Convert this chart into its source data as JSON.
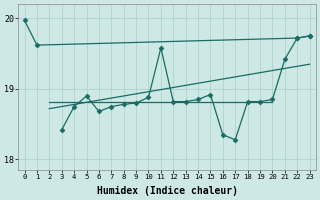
{
  "xlabel": "Humidex (Indice chaleur)",
  "bg_color": "#cde8e5",
  "grid_color": "#a8cfcc",
  "line_color": "#1a6b65",
  "xlim": [
    -0.5,
    23.5
  ],
  "ylim": [
    17.85,
    20.2
  ],
  "yticks": [
    18,
    19,
    20
  ],
  "xticks": [
    0,
    1,
    2,
    3,
    4,
    5,
    6,
    7,
    8,
    9,
    10,
    11,
    12,
    13,
    14,
    15,
    16,
    17,
    18,
    19,
    20,
    21,
    22,
    23
  ],
  "series_with_markers": [
    {
      "x": [
        0,
        1,
        22,
        23
      ],
      "y": [
        19.97,
        19.62,
        19.72,
        19.75
      ]
    },
    {
      "x": [
        3,
        4,
        5,
        6,
        7,
        8,
        9,
        10,
        11,
        12,
        13,
        14,
        15,
        16,
        17,
        18,
        19,
        20,
        21,
        22,
        23
      ],
      "y": [
        18.42,
        18.75,
        18.9,
        18.68,
        18.75,
        18.78,
        18.8,
        18.88,
        19.58,
        18.82,
        18.82,
        18.85,
        18.92,
        18.35,
        18.28,
        18.82,
        18.82,
        18.85,
        19.42,
        19.72,
        19.75
      ]
    }
  ],
  "series_no_markers": [
    {
      "x": [
        2,
        3,
        4,
        5,
        6,
        7,
        8,
        9,
        10,
        11,
        12,
        13,
        14,
        15,
        16,
        17,
        18,
        19,
        20
      ],
      "y": [
        18.82,
        18.82,
        18.82,
        18.82,
        18.82,
        18.82,
        18.82,
        18.82,
        18.82,
        18.82,
        18.82,
        18.82,
        18.82,
        18.82,
        18.82,
        18.82,
        18.82,
        18.82,
        18.82
      ]
    },
    {
      "x": [
        2,
        3,
        4,
        5,
        6,
        7,
        8,
        9,
        10,
        11,
        12,
        13,
        14,
        15,
        16,
        17,
        18,
        19,
        20,
        21,
        22,
        23
      ],
      "y": [
        18.72,
        18.75,
        18.78,
        18.81,
        18.84,
        18.87,
        18.9,
        18.93,
        18.96,
        18.99,
        19.02,
        19.05,
        19.08,
        19.11,
        19.14,
        19.17,
        19.2,
        19.23,
        19.26,
        19.29,
        19.32,
        19.35
      ]
    }
  ]
}
